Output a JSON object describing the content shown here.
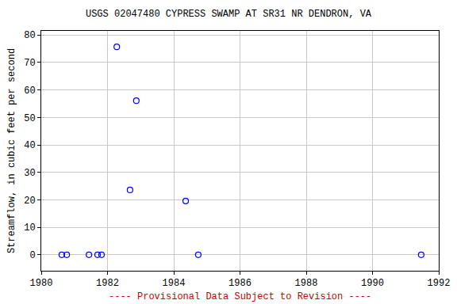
{
  "chart_data": {
    "type": "scatter",
    "title": "USGS 02047480 CYPRESS SWAMP AT SR31 NR DENDRON, VA",
    "ylabel": "Streamflow, in cubic feet per second",
    "annotations": [
      "---- Provisional Data Subject to Revision ----"
    ],
    "x": [
      1980.62,
      1980.77,
      1981.44,
      1981.7,
      1981.82,
      1982.28,
      1982.68,
      1982.87,
      1984.36,
      1984.74,
      1991.47
    ],
    "values": [
      0,
      0,
      0,
      0,
      0,
      75.7,
      23.6,
      56.1,
      19.6,
      0,
      0
    ],
    "color": "#0000ff",
    "marker": "open circle",
    "xlim": [
      1980,
      1992
    ],
    "xticks": [
      1980,
      1982,
      1984,
      1986,
      1988,
      1990,
      1992
    ],
    "ylim": [
      -5.8,
      81.5
    ],
    "yticks": [
      0,
      10,
      20,
      30,
      40,
      50,
      60,
      70,
      80
    ],
    "grid": true
  }
}
